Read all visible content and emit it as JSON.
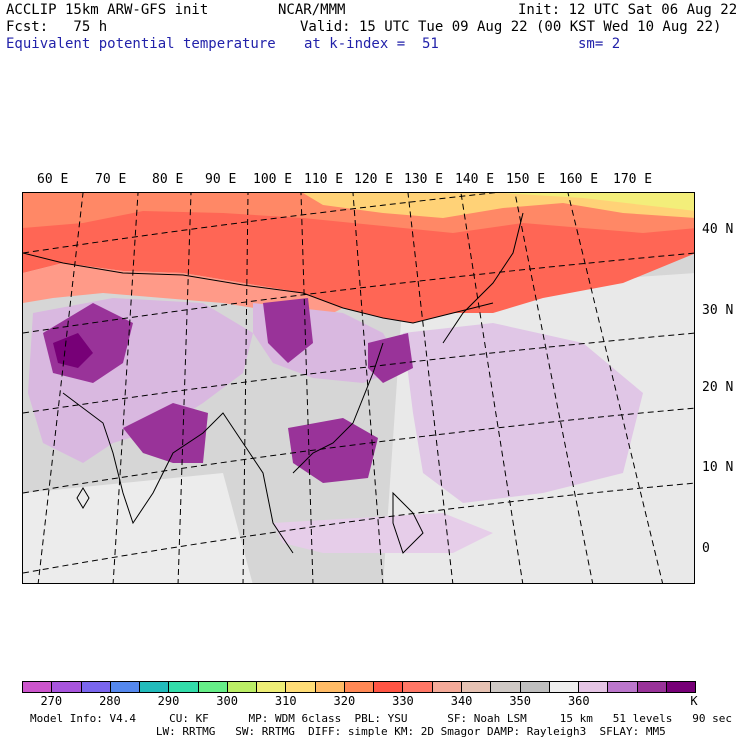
{
  "header": {
    "line1_left": "ACCLIP 15km ARW-GFS init",
    "line1_center": "NCAR/MMM",
    "line1_right": "Init: 12 UTC Sat 06 Aug 22",
    "line2_left": "Fcst:   75 h",
    "line2_right": "Valid: 15 UTC Tue 09 Aug 22 (00 KST Wed 10 Aug 22)",
    "line3_left": "Equivalent potential temperature",
    "line3_center": "at k-index =  51",
    "line3_right": "sm= 2"
  },
  "map": {
    "lon_labels": [
      "60 E",
      "70 E",
      "80 E",
      "90 E",
      "100 E",
      "110 E",
      "120 E",
      "130 E",
      "140 E",
      "150 E",
      "160 E",
      "170 E"
    ],
    "lat_labels": [
      "40 N",
      "30 N",
      "20 N",
      "10 N",
      "0"
    ]
  },
  "colorbar": {
    "colors": [
      "#cc55cc",
      "#a855dd",
      "#7a66ee",
      "#5588ee",
      "#22bbbb",
      "#33ddaa",
      "#66ee88",
      "#bbee66",
      "#eeee77",
      "#ffdd77",
      "#ffbb66",
      "#ff8855",
      "#ff5544",
      "#ff7766",
      "#f4aa99",
      "#e6c2b3",
      "#cfc9c5",
      "#bfbfbf",
      "#eeeeee",
      "#e5c5e5",
      "#bb77cc",
      "#993399",
      "#770077"
    ],
    "tick_labels": [
      "270",
      "280",
      "290",
      "300",
      "310",
      "320",
      "330",
      "340",
      "350",
      "360",
      "K"
    ],
    "units_note": "K"
  },
  "footer": {
    "line1": "Model Info: V4.4     CU: KF      MP: WDM 6class  PBL: YSU      SF: Noah LSM     15 km   51 levels   90 sec",
    "line2": "                   LW: RRTMG   SW: RRTMG  DIFF: simple KM: 2D Smagor DAMP: Rayleigh3  SFLAY: MM5"
  }
}
